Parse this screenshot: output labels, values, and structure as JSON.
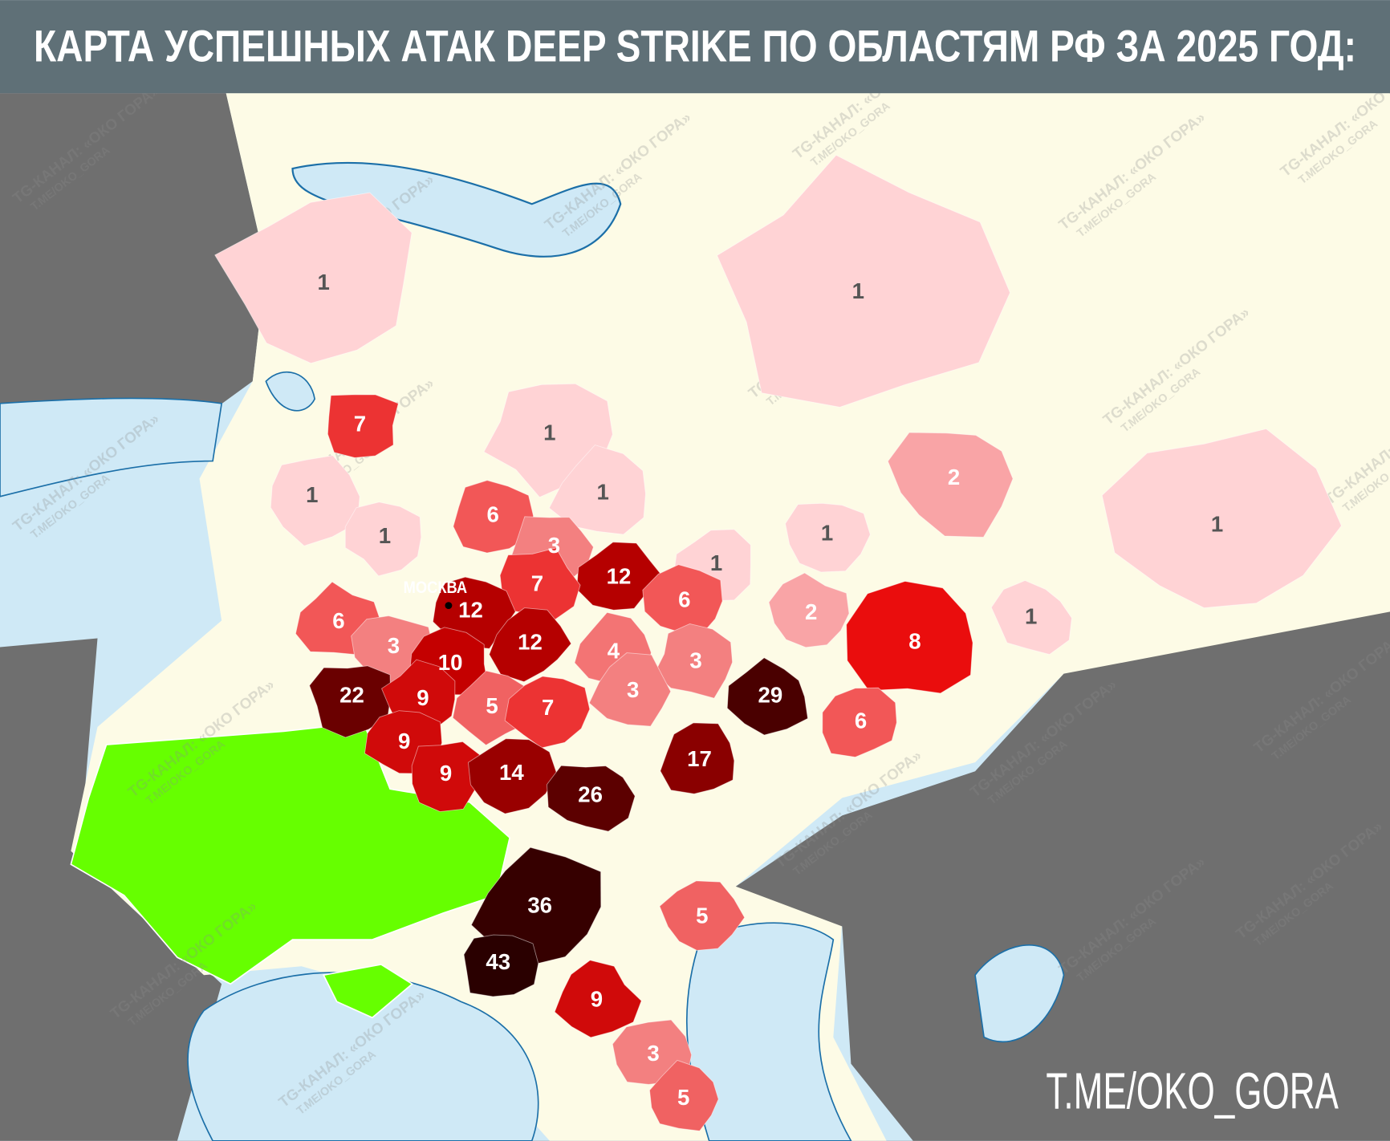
{
  "header": {
    "title": "КАРТА УСПЕШНЫХ АТАК DEEP STRIKE ПО ОБЛАСТЯМ РФ ЗА 2025 ГОД:"
  },
  "map": {
    "capital": "МОСКВА",
    "regions": [
      {
        "value": 1,
        "color": "#ffd3d5"
      },
      {
        "value": 1,
        "color": "#ffd3d5"
      },
      {
        "value": 7,
        "color": "#ec3333"
      },
      {
        "value": 1,
        "color": "#ffd3d5"
      },
      {
        "value": 2,
        "color": "#f9a4a6"
      },
      {
        "value": 1,
        "color": "#ffd3d5"
      },
      {
        "value": 6,
        "color": "#f25757"
      },
      {
        "value": 1,
        "color": "#ffd3d5"
      },
      {
        "value": 1,
        "color": "#ffd3d5"
      },
      {
        "value": 3,
        "color": "#f38080"
      },
      {
        "value": 12,
        "color": "#b50000"
      },
      {
        "value": 1,
        "color": "#ffd3d5"
      },
      {
        "value": 1,
        "color": "#ffd3d5"
      },
      {
        "value": 1,
        "color": "#ffd3d5"
      },
      {
        "value": 7,
        "color": "#ec3333"
      },
      {
        "value": 6,
        "color": "#f25757"
      },
      {
        "value": 12,
        "color": "#b50000"
      },
      {
        "value": 2,
        "color": "#f9a4a6"
      },
      {
        "value": 1,
        "color": "#ffd3d5"
      },
      {
        "value": 8,
        "color": "#ea0d0d"
      },
      {
        "value": 6,
        "color": "#f25757"
      },
      {
        "value": 3,
        "color": "#f38080"
      },
      {
        "value": 12,
        "color": "#b50000"
      },
      {
        "value": 4,
        "color": "#f37474"
      },
      {
        "value": 10,
        "color": "#c40000"
      },
      {
        "value": 3,
        "color": "#f38080"
      },
      {
        "value": 22,
        "color": "#6a0000"
      },
      {
        "value": 9,
        "color": "#d00a0a"
      },
      {
        "value": 29,
        "color": "#4a0000"
      },
      {
        "value": 3,
        "color": "#f38080"
      },
      {
        "value": 5,
        "color": "#f06262"
      },
      {
        "value": 7,
        "color": "#ec3333"
      },
      {
        "value": 6,
        "color": "#f25757"
      },
      {
        "value": 9,
        "color": "#d00a0a"
      },
      {
        "value": 17,
        "color": "#8a0000"
      },
      {
        "value": 9,
        "color": "#d00a0a"
      },
      {
        "value": 14,
        "color": "#990000"
      },
      {
        "value": 26,
        "color": "#5c0000"
      },
      {
        "value": 36,
        "color": "#360000"
      },
      {
        "value": 5,
        "color": "#f06262"
      },
      {
        "value": 43,
        "color": "#2a0000"
      },
      {
        "value": 9,
        "color": "#d00a0a"
      },
      {
        "value": 3,
        "color": "#f38080"
      },
      {
        "value": 5,
        "color": "#f06262"
      }
    ]
  },
  "watermark": [
    "TG-КАНАЛ: «ОКО ГОРА»",
    "T.ME/OKO_GORA"
  ],
  "footer": "T.ME/OKO_GORA"
}
